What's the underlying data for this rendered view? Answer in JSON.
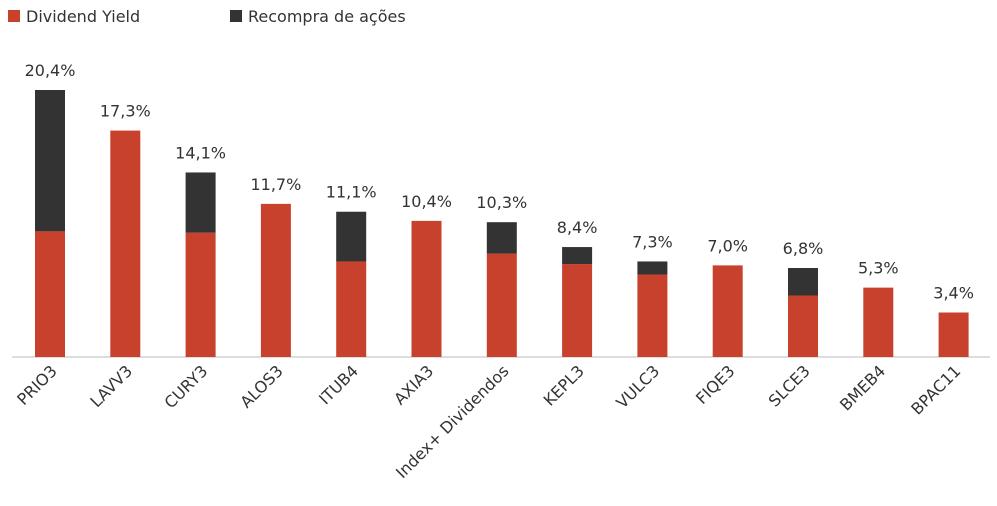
{
  "chart_data": {
    "type": "stacked_bar",
    "categories": [
      "PRIO3",
      "LAVV3",
      "CURY3",
      "ALOS3",
      "ITUB4",
      "AXIA3",
      "Index+ Dividendos",
      "KEPL3",
      "VULC3",
      "FIQE3",
      "SLCE3",
      "BMEB4",
      "BPAC11"
    ],
    "series": [
      {
        "name": "Dividend Yield",
        "color": "#c8412d",
        "values": [
          9.6,
          17.3,
          9.5,
          11.7,
          7.3,
          10.4,
          7.9,
          7.1,
          6.3,
          7.0,
          4.7,
          5.3,
          3.4
        ]
      },
      {
        "name": "Recompra de ações",
        "color": "#333333",
        "values": [
          10.8,
          0,
          4.6,
          0,
          3.8,
          0,
          2.4,
          1.3,
          1.0,
          0,
          2.1,
          0,
          0
        ]
      }
    ],
    "totals": [
      20.4,
      17.3,
      14.1,
      11.7,
      11.1,
      10.4,
      10.3,
      8.4,
      7.3,
      7.0,
      6.8,
      5.3,
      3.4
    ],
    "total_labels": [
      "20,4%",
      "17,3%",
      "14,1%",
      "11,7%",
      "11,1%",
      "10,4%",
      "10,3%",
      "8,4%",
      "7,3%",
      "7,0%",
      "6,8%",
      "5,3%",
      "3,4%"
    ],
    "legend": "top-left"
  }
}
